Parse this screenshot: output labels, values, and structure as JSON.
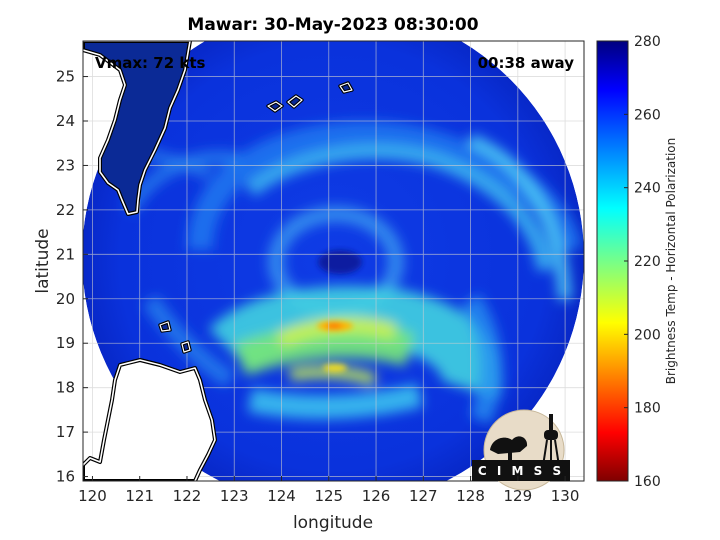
{
  "title": "Mawar: 30-May-2023 08:30:00",
  "vmax_label": "Vmax: 72 kts",
  "away_label": "00:38 away",
  "logo_text": "C I M S S",
  "chart_data": {
    "type": "heatmap",
    "xlabel": "longitude",
    "ylabel": "latitude",
    "xlim": [
      119.8,
      130.4
    ],
    "ylim": [
      15.9,
      25.8
    ],
    "xticks": [
      "120",
      "121",
      "122",
      "123",
      "124",
      "125",
      "126",
      "127",
      "128",
      "129",
      "130"
    ],
    "yticks": [
      "16",
      "17",
      "18",
      "19",
      "20",
      "21",
      "22",
      "23",
      "24",
      "25"
    ],
    "grid": true,
    "colorbar": {
      "label": "Brightness Temp - Horizontal Polarization",
      "range": [
        160,
        280
      ],
      "ticks": [
        "160",
        "180",
        "200",
        "220",
        "240",
        "260",
        "280"
      ],
      "colormap": "jet"
    },
    "swath": {
      "center_lon": 125.1,
      "center_lat": 20.85,
      "radius_deg": 5.4
    },
    "eye": {
      "lon": 125.1,
      "lat": 20.85,
      "tb": 258
    },
    "coldest_band": {
      "lon": 125.1,
      "lat": 19.4,
      "tb": 198
    }
  },
  "colors": {
    "background": "#ffffff",
    "no_data": "#ffffff",
    "coastline": "#000000",
    "grid": "#d9d9d9"
  }
}
